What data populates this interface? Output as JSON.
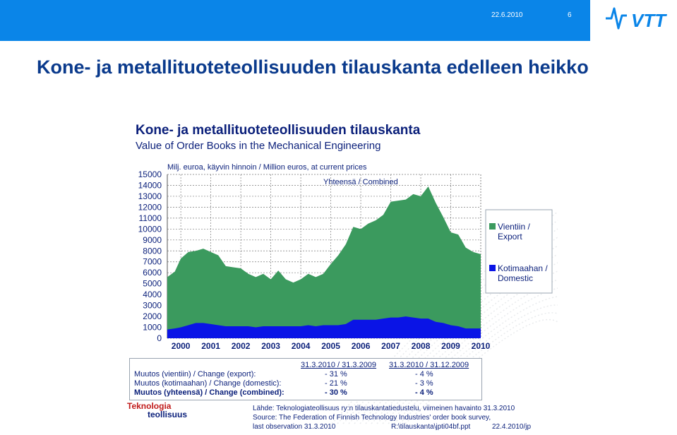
{
  "header": {
    "date": "22.6.2010",
    "page_number": "6",
    "logo_text": "VTT"
  },
  "slide_title": "Kone- ja metallituoteteollisuuden tilauskanta edelleen heikko",
  "chart_data": {
    "type": "area",
    "title": "Kone- ja metallituoteteollisuuden tilauskanta",
    "subtitle": "Value of Order Books in the Mechanical Engineering",
    "ylabel": "Milj. euroa, käyvin hinnoin / Million euros, at current prices",
    "annotation": "Yhteensä / Combined",
    "ylim": [
      0,
      15000
    ],
    "yticks": [
      0,
      1000,
      2000,
      3000,
      4000,
      5000,
      6000,
      7000,
      8000,
      9000,
      10000,
      11000,
      12000,
      13000,
      14000,
      15000
    ],
    "xticks": [
      "2000",
      "2001",
      "2002",
      "2003",
      "2004",
      "2005",
      "2006",
      "2007",
      "2008",
      "2009",
      "2010"
    ],
    "xlim": [
      1999.55,
      2010.0
    ],
    "legend_position": "right",
    "grid": true,
    "series": [
      {
        "name": "Vientiin / Export",
        "color": "#3b9a5e",
        "stacked_on": "Kotimaahan / Domestic",
        "x": [
          1999.55,
          1999.8,
          2000.0,
          2000.25,
          2000.5,
          2000.75,
          2001.0,
          2001.25,
          2001.5,
          2001.75,
          2002.0,
          2002.25,
          2002.5,
          2002.75,
          2003.0,
          2003.25,
          2003.5,
          2003.75,
          2004.0,
          2004.25,
          2004.5,
          2004.75,
          2005.0,
          2005.25,
          2005.5,
          2005.75,
          2006.0,
          2006.25,
          2006.5,
          2006.75,
          2007.0,
          2007.25,
          2007.5,
          2007.75,
          2008.0,
          2008.25,
          2008.5,
          2008.75,
          2009.0,
          2009.25,
          2009.5,
          2009.75,
          2010.0
        ],
        "total": [
          5600,
          6100,
          7300,
          7900,
          8000,
          8200,
          7900,
          7600,
          6600,
          6500,
          6400,
          5900,
          5600,
          5900,
          5400,
          6200,
          5400,
          5100,
          5400,
          5900,
          5600,
          5900,
          6800,
          7600,
          8600,
          10200,
          10000,
          10500,
          10800,
          11300,
          12500,
          12600,
          12700,
          13200,
          13000,
          13900,
          12400,
          11100,
          9700,
          9500,
          8300,
          7900,
          7700
        ],
        "values": [
          4800,
          5200,
          6300,
          6700,
          6600,
          6800,
          6600,
          6400,
          5500,
          5400,
          5300,
          4800,
          4600,
          4800,
          4300,
          5100,
          4300,
          4000,
          4300,
          4700,
          4500,
          4700,
          5600,
          6400,
          7300,
          8500,
          8300,
          8800,
          9100,
          9500,
          10600,
          10700,
          10700,
          11300,
          11200,
          12100,
          10900,
          9700,
          8500,
          8400,
          7400,
          7000,
          6800
        ]
      },
      {
        "name": "Kotimaahan / Domestic",
        "color": "#0a14e6",
        "x": [
          1999.55,
          1999.8,
          2000.0,
          2000.25,
          2000.5,
          2000.75,
          2001.0,
          2001.25,
          2001.5,
          2001.75,
          2002.0,
          2002.25,
          2002.5,
          2002.75,
          2003.0,
          2003.25,
          2003.5,
          2003.75,
          2004.0,
          2004.25,
          2004.5,
          2004.75,
          2005.0,
          2005.25,
          2005.5,
          2005.75,
          2006.0,
          2006.25,
          2006.5,
          2006.75,
          2007.0,
          2007.25,
          2007.5,
          2007.75,
          2008.0,
          2008.25,
          2008.5,
          2008.75,
          2009.0,
          2009.25,
          2009.5,
          2009.75,
          2010.0
        ],
        "values": [
          800,
          900,
          1000,
          1200,
          1400,
          1400,
          1300,
          1200,
          1100,
          1100,
          1100,
          1100,
          1000,
          1100,
          1100,
          1100,
          1100,
          1100,
          1100,
          1200,
          1100,
          1200,
          1200,
          1200,
          1300,
          1700,
          1700,
          1700,
          1700,
          1800,
          1900,
          1900,
          2000,
          1900,
          1800,
          1800,
          1500,
          1400,
          1200,
          1100,
          900,
          900,
          900
        ]
      }
    ]
  },
  "change_table": {
    "col1_header": "31.3.2010 / 31.3.2009",
    "col2_header": "31.3.2010 / 31.12.2009",
    "rows": [
      {
        "label": "Muutos (vientiin) / Change (export):",
        "v1": "- 31 %",
        "v2": "- 4 %",
        "bold": false
      },
      {
        "label": "Muutos (kotimaahan) / Change (domestic):",
        "v1": "- 21 %",
        "v2": "- 3 %",
        "bold": false
      },
      {
        "label": "Muutos (yhteensä) / Change (combined):",
        "v1": "- 30 %",
        "v2": "- 4 %",
        "bold": true
      }
    ]
  },
  "footer": {
    "logo_line1": "Teknologia",
    "logo_line2": "teollisuus",
    "source_fi": "Lähde: Teknologiateollisuus ry:n tilauskantatiedustelu, viimeinen havainto 31.3.2010",
    "source_en": "Source: The Federation of Finnish Technology Industries' order book survey,",
    "last_obs": "last observation 31.3.2010",
    "file_path": "R:\\tilauskanta\\jpti04bf.ppt",
    "file_date": "22.4.2010/jp"
  }
}
